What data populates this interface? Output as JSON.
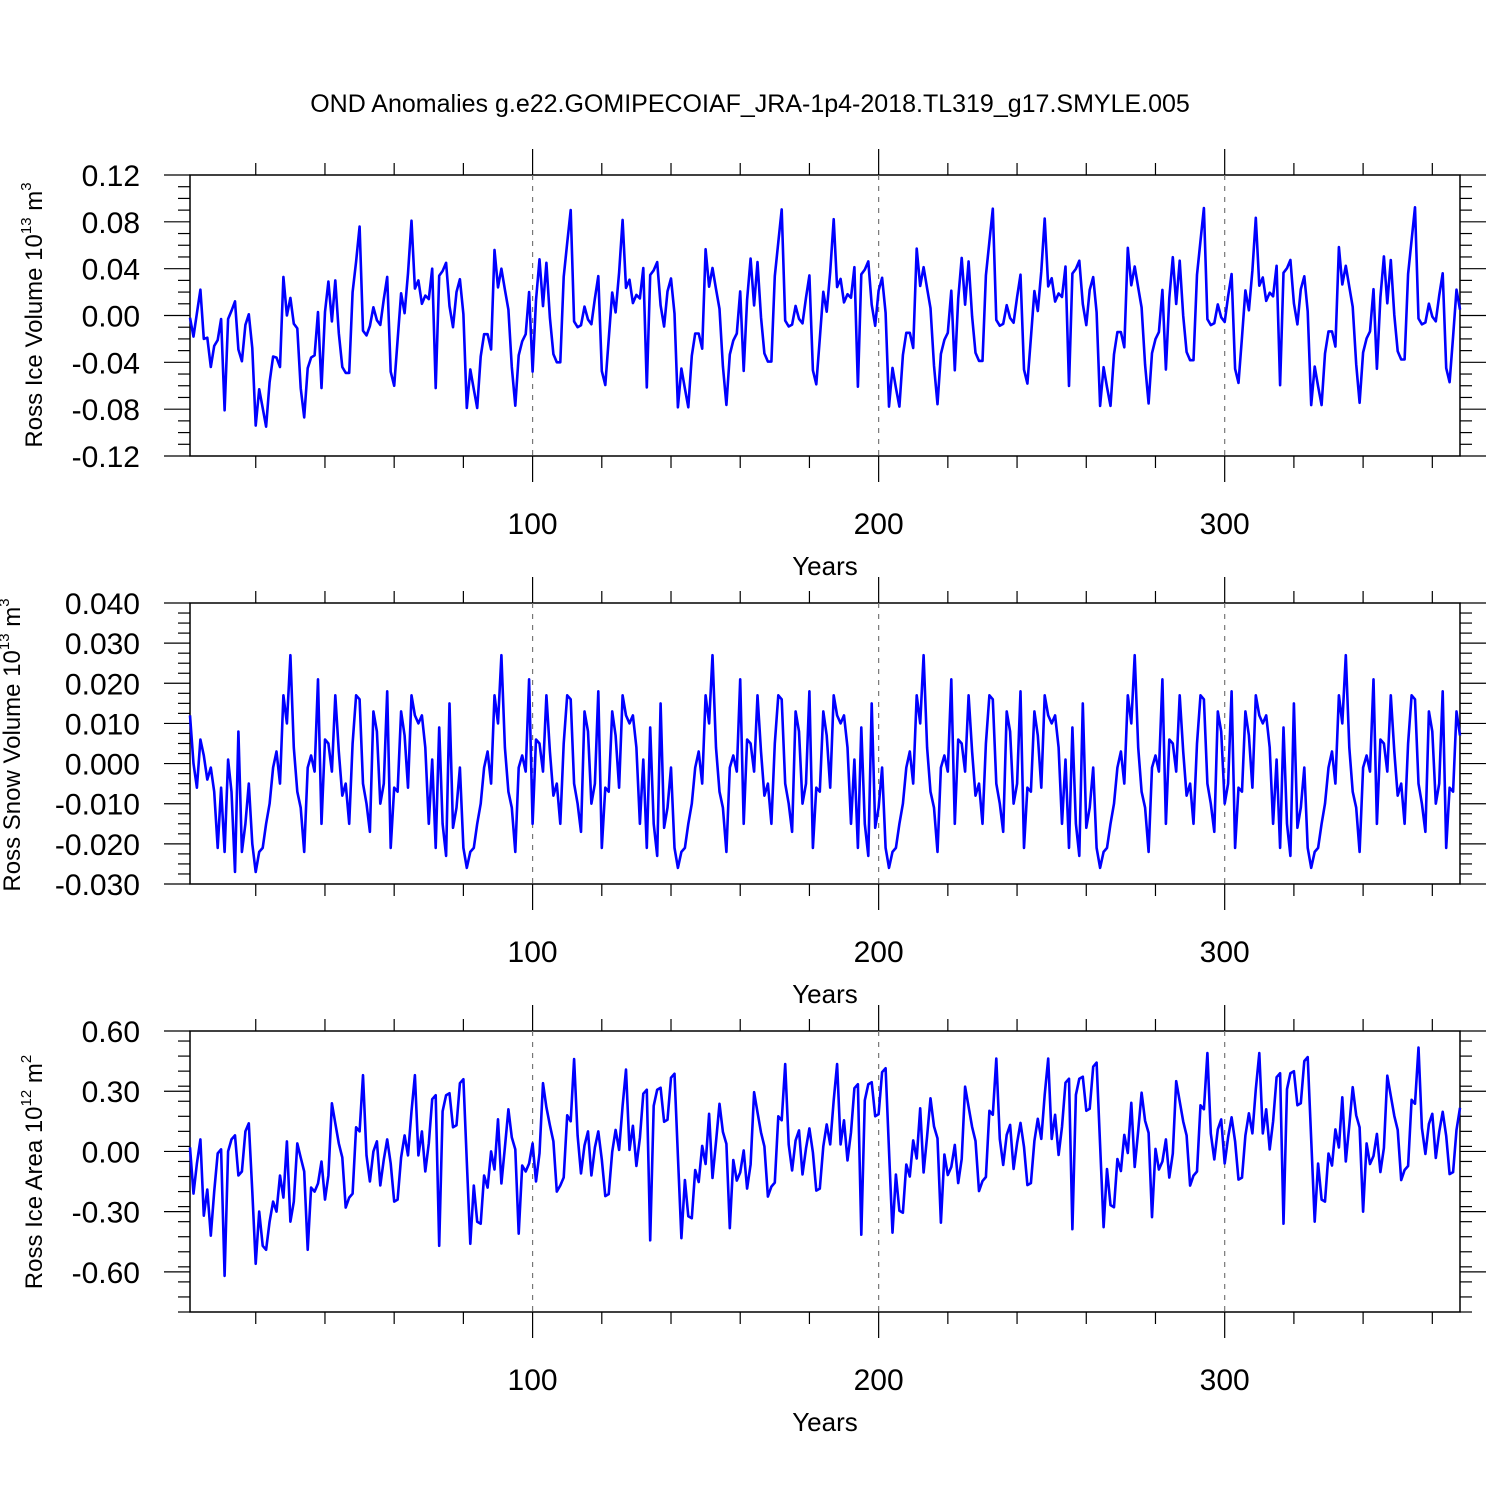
{
  "title": "OND Anomalies g.e22.GOMIPECOIAF_JRA-1p4-2018.TL319_g17.SMYLE.005",
  "colors": {
    "series": "#0000ff",
    "axes": "#000000",
    "grid": "#777777"
  },
  "chart_data": [
    {
      "type": "line",
      "ylabel": "Ross Ice Volume 10",
      "ylabel_sup": "13",
      "ylabel_unit": " m",
      "ylabel_unit_sup": "3",
      "xlabel": "Years",
      "xlim": [
        1,
        368
      ],
      "ylim": [
        -0.12,
        0.12
      ],
      "xticks": [
        100,
        200,
        300
      ],
      "xtick_labels": [
        "100",
        "200",
        "300"
      ],
      "yticks": [
        -0.12,
        -0.08,
        -0.04,
        0.0,
        0.04,
        0.08,
        0.12
      ],
      "ytick_labels": [
        "-0.12",
        "-0.08",
        "-0.04",
        "0.00",
        "0.04",
        "0.08",
        "0.12"
      ],
      "grid": "vertical dashed at major x ticks",
      "series": [
        {
          "name": "Ross Ice Volume",
          "cycle_start": 53,
          "cycle_length": 61,
          "trend_per_year": 1e-05,
          "x": [
            1,
            2,
            3,
            4,
            5,
            6,
            7,
            8,
            9,
            10,
            11,
            12,
            13,
            14,
            15,
            16,
            17,
            18,
            19,
            20,
            21,
            22,
            23,
            24,
            25,
            26,
            27,
            28,
            29,
            30,
            31,
            32,
            33,
            34,
            35,
            36,
            37,
            38,
            39,
            40,
            41,
            42,
            43,
            44,
            45,
            46,
            47,
            48,
            49,
            50,
            51,
            52,
            53,
            54,
            55,
            56,
            57,
            58,
            59,
            60,
            61,
            62,
            63,
            64,
            65,
            66,
            67,
            68,
            69,
            70,
            71,
            72,
            73,
            74,
            75,
            76,
            77,
            78,
            79,
            80,
            81,
            82,
            83,
            84,
            85,
            86,
            87,
            88,
            89,
            90,
            91,
            92,
            93,
            94,
            95,
            96,
            97,
            98,
            99,
            100,
            101,
            102,
            103,
            104,
            105,
            106,
            107,
            108,
            109,
            110,
            111,
            112,
            113
          ],
          "values": [
            -0.002,
            -0.018,
            0.002,
            0.022,
            -0.02,
            -0.019,
            -0.044,
            -0.026,
            -0.021,
            -0.003,
            -0.081,
            -0.003,
            0.004,
            0.012,
            -0.029,
            -0.039,
            -0.008,
            0.001,
            -0.028,
            -0.094,
            -0.063,
            -0.079,
            -0.095,
            -0.057,
            -0.035,
            -0.036,
            -0.044,
            0.033,
            0.0,
            0.015,
            -0.007,
            -0.011,
            -0.062,
            -0.087,
            -0.045,
            -0.036,
            -0.034,
            0.003,
            -0.062,
            0.003,
            0.029,
            -0.005,
            0.03,
            -0.015,
            -0.044,
            -0.049,
            -0.049,
            0.02,
            0.046,
            0.076,
            -0.013,
            -0.017,
            -0.009,
            0.007,
            -0.004,
            -0.008,
            0.014,
            0.033,
            -0.048,
            -0.06,
            -0.021,
            0.019,
            0.002,
            0.036,
            0.081,
            0.023,
            0.03,
            0.01,
            0.017,
            0.014,
            0.04,
            -0.062,
            0.034,
            0.038,
            0.045,
            0.008,
            -0.01,
            0.02,
            0.031,
            0.001,
            -0.079,
            -0.046,
            -0.063,
            -0.079,
            -0.035,
            -0.016,
            -0.016,
            -0.029,
            0.056,
            0.024,
            0.04,
            0.022,
            0.005,
            -0.044,
            -0.077,
            -0.034,
            -0.022,
            -0.016,
            0.02,
            -0.048,
            0.013,
            0.048,
            0.008,
            0.045,
            -0.002,
            -0.033,
            -0.04,
            -0.04,
            0.033,
            0.062,
            0.09,
            -0.005,
            -0.01
          ]
        }
      ]
    },
    {
      "type": "line",
      "ylabel": "Ross Snow Volume 10",
      "ylabel_sup": "13",
      "ylabel_unit": " m",
      "ylabel_unit_sup": "3",
      "xlabel": "Years",
      "xlim": [
        1,
        368
      ],
      "ylim": [
        -0.03,
        0.04
      ],
      "xticks": [
        100,
        200,
        300
      ],
      "xtick_labels": [
        "100",
        "200",
        "300"
      ],
      "yticks": [
        -0.03,
        -0.02,
        -0.01,
        0.0,
        0.01,
        0.02,
        0.03,
        0.04
      ],
      "ytick_labels": [
        "-0.030",
        "-0.020",
        "-0.010",
        "0.000",
        "0.010",
        "0.020",
        "0.030",
        "0.040"
      ],
      "grid": "vertical dashed at major x ticks",
      "series": [
        {
          "name": "Ross Snow Volume",
          "cycle_start": 21,
          "cycle_length": 61,
          "trend_per_year": 0.0,
          "x": [
            1,
            2,
            3,
            4,
            5,
            6,
            7,
            8,
            9,
            10,
            11,
            12,
            13,
            14,
            15,
            16,
            17,
            18,
            19,
            20,
            21,
            22,
            23,
            24,
            25,
            26,
            27,
            28,
            29,
            30,
            31,
            32,
            33,
            34,
            35,
            36,
            37,
            38,
            39,
            40,
            41,
            42,
            43,
            44,
            45,
            46,
            47,
            48,
            49,
            50,
            51,
            52,
            53,
            54,
            55,
            56,
            57,
            58,
            59,
            60,
            61,
            62,
            63,
            64,
            65,
            66,
            67,
            68,
            69,
            70,
            71,
            72,
            73,
            74,
            75,
            76,
            77,
            78,
            79,
            80,
            81
          ],
          "values": [
            0.012,
            0.0,
            -0.006,
            0.006,
            0.002,
            -0.004,
            -0.001,
            -0.007,
            -0.021,
            -0.006,
            -0.022,
            0.001,
            -0.007,
            -0.027,
            0.008,
            -0.022,
            -0.015,
            -0.005,
            -0.02,
            -0.027,
            -0.022,
            -0.021,
            -0.015,
            -0.01,
            -0.001,
            0.003,
            -0.005,
            0.017,
            0.01,
            0.027,
            0.004,
            -0.007,
            -0.011,
            -0.022,
            -0.001,
            0.002,
            -0.002,
            0.021,
            -0.015,
            0.006,
            0.005,
            -0.002,
            0.017,
            0.003,
            -0.008,
            -0.005,
            -0.015,
            0.005,
            0.017,
            0.016,
            -0.005,
            -0.01,
            -0.017,
            0.013,
            0.008,
            -0.01,
            -0.005,
            0.018,
            -0.021,
            -0.006,
            -0.007,
            0.013,
            0.007,
            -0.006,
            0.017,
            0.012,
            0.01,
            0.012,
            0.004,
            -0.015,
            0.001,
            -0.021,
            0.009,
            -0.015,
            -0.023,
            0.015,
            -0.016,
            -0.011,
            -0.001,
            -0.021,
            -0.026
          ]
        }
      ]
    },
    {
      "type": "line",
      "ylabel": "Ross Ice Area 10",
      "ylabel_sup": "12",
      "ylabel_unit": " m",
      "ylabel_unit_sup": "2",
      "xlabel": "Years",
      "xlim": [
        1,
        368
      ],
      "ylim": [
        -0.8,
        0.6
      ],
      "xticks": [
        100,
        200,
        300
      ],
      "xtick_labels": [
        "100",
        "200",
        "300"
      ],
      "yticks": [
        -0.6,
        -0.3,
        0.0,
        0.3,
        0.6
      ],
      "ytick_labels": [
        "-0.60",
        "-0.30",
        "0.00",
        "0.30",
        "0.60"
      ],
      "grid": "vertical dashed at major x ticks",
      "series": [
        {
          "name": "Ross Ice Area",
          "cycle_start": 37,
          "cycle_length": 61,
          "trend_per_year": 0.00045,
          "x": [
            1,
            2,
            3,
            4,
            5,
            6,
            7,
            8,
            9,
            10,
            11,
            12,
            13,
            14,
            15,
            16,
            17,
            18,
            19,
            20,
            21,
            22,
            23,
            24,
            25,
            26,
            27,
            28,
            29,
            30,
            31,
            32,
            33,
            34,
            35,
            36,
            37,
            38,
            39,
            40,
            41,
            42,
            43,
            44,
            45,
            46,
            47,
            48,
            49,
            50,
            51,
            52,
            53,
            54,
            55,
            56,
            57,
            58,
            59,
            60,
            61,
            62,
            63,
            64,
            65,
            66,
            67,
            68,
            69,
            70,
            71,
            72,
            73,
            74,
            75,
            76,
            77,
            78,
            79,
            80,
            81,
            82,
            83,
            84,
            85,
            86,
            87,
            88,
            89,
            90,
            91,
            92,
            93,
            94,
            95,
            96,
            97,
            98,
            99,
            100,
            101,
            102,
            103,
            104,
            105,
            106,
            107,
            108,
            109,
            110,
            111,
            112,
            113,
            114,
            115,
            116,
            117,
            118,
            119,
            120
          ],
          "values": [
            0.02,
            -0.21,
            -0.06,
            0.06,
            -0.32,
            -0.19,
            -0.42,
            -0.2,
            -0.01,
            0.01,
            -0.62,
            0.0,
            0.06,
            0.08,
            -0.12,
            -0.1,
            0.1,
            0.14,
            -0.2,
            -0.56,
            -0.3,
            -0.47,
            -0.49,
            -0.35,
            -0.25,
            -0.3,
            -0.12,
            -0.23,
            0.05,
            -0.35,
            -0.25,
            0.04,
            -0.03,
            -0.1,
            -0.49,
            -0.18,
            -0.2,
            -0.16,
            -0.05,
            -0.24,
            -0.12,
            0.24,
            0.14,
            0.04,
            -0.03,
            -0.28,
            -0.23,
            -0.21,
            0.12,
            0.1,
            0.38,
            -0.02,
            -0.15,
            0.0,
            0.05,
            -0.17,
            -0.04,
            0.06,
            -0.06,
            -0.25,
            -0.24,
            -0.03,
            0.08,
            -0.02,
            0.2,
            0.38,
            -0.02,
            0.1,
            -0.1,
            0.04,
            0.26,
            0.28,
            -0.47,
            0.2,
            0.28,
            0.29,
            0.12,
            0.13,
            0.34,
            0.36,
            -0.05,
            -0.46,
            -0.17,
            -0.35,
            -0.36,
            -0.12,
            -0.18,
            0.0,
            -0.09,
            0.16,
            -0.16,
            0.02,
            0.21,
            0.07,
            0.01,
            -0.41,
            -0.07,
            -0.1,
            -0.06,
            0.04,
            -0.15,
            -0.01,
            0.34,
            0.22,
            0.13,
            0.05,
            -0.2,
            -0.17,
            -0.13,
            0.18,
            0.15,
            0.46,
            0.08,
            -0.11,
            0.03,
            0.1,
            -0.12,
            0.02,
            0.1,
            -0.04
          ]
        }
      ]
    }
  ]
}
